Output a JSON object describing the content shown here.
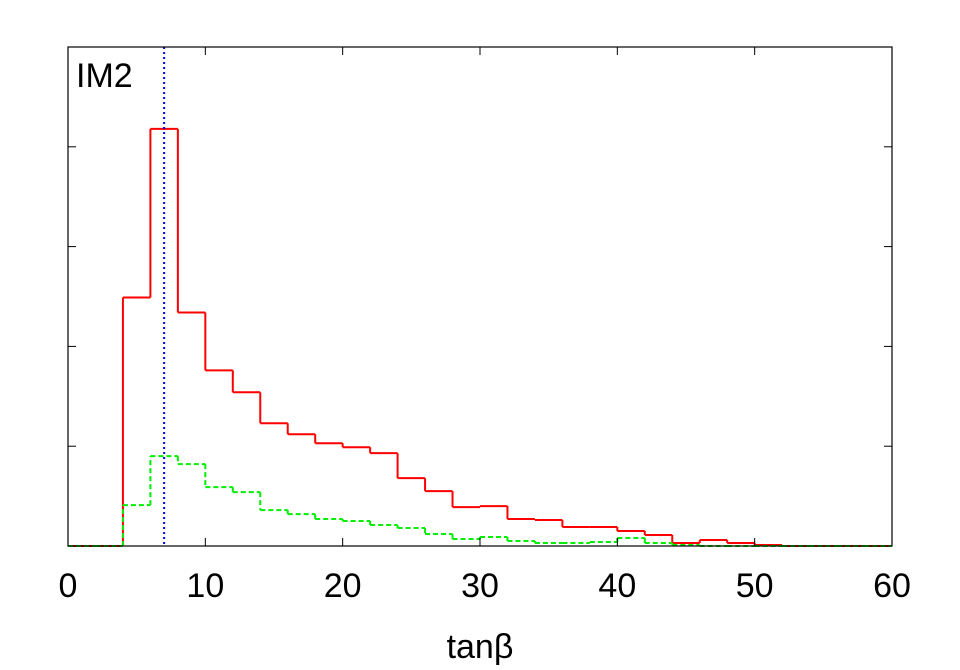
{
  "chart_data": {
    "type": "histogram",
    "annotation": "IM2",
    "xlabel": "tanβ",
    "bins": [
      0,
      2,
      4,
      6,
      8,
      10,
      12,
      14,
      16,
      18,
      20,
      22,
      24,
      26,
      28,
      30,
      32,
      34,
      36,
      38,
      40,
      42,
      44,
      46,
      48,
      50,
      52,
      54,
      56,
      58,
      60
    ],
    "series": [
      {
        "color": "#ff0000",
        "dash": "solid",
        "values": [
          0,
          0,
          2.49,
          4.18,
          2.34,
          1.76,
          1.54,
          1.23,
          1.12,
          1.03,
          0.99,
          0.93,
          0.68,
          0.55,
          0.39,
          0.4,
          0.27,
          0.26,
          0.19,
          0.19,
          0.15,
          0.11,
          0.03,
          0.06,
          0.03,
          0.01,
          0,
          0,
          0,
          0
        ]
      },
      {
        "color": "#00ee00",
        "dash": "dashed",
        "values": [
          0,
          0,
          0.41,
          0.9,
          0.82,
          0.59,
          0.54,
          0.36,
          0.32,
          0.27,
          0.25,
          0.21,
          0.18,
          0.12,
          0.07,
          0.09,
          0.05,
          0.03,
          0.03,
          0.04,
          0.08,
          0.03,
          0.01,
          0,
          0,
          0,
          0,
          0,
          0,
          0
        ]
      }
    ],
    "reference_line": {
      "x": 7,
      "color": "#0000ff"
    },
    "xlim": [
      0,
      60
    ],
    "xticks": [
      0,
      10,
      20,
      30,
      40,
      50,
      60
    ],
    "ylim": [
      0,
      5
    ],
    "yticks": [
      1,
      2,
      3,
      4
    ]
  }
}
